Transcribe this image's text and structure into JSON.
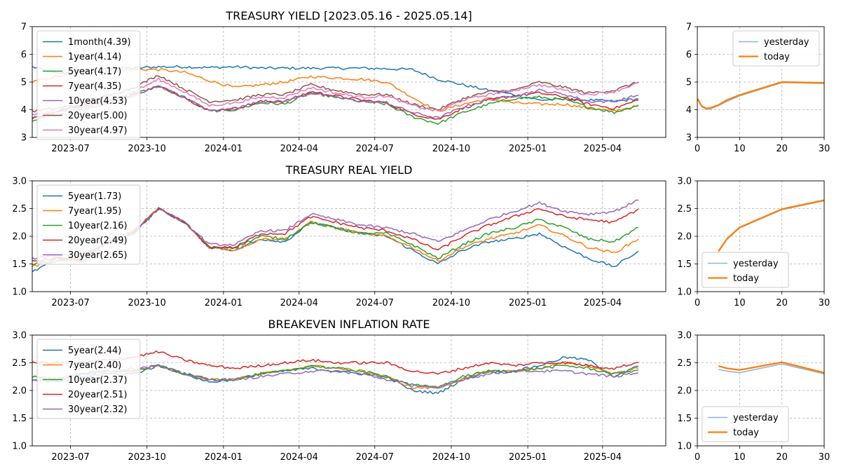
{
  "colors": {
    "c0": "#1f77b4",
    "c1": "#ff7f0e",
    "c2": "#2ca02c",
    "c3": "#d62728",
    "c4": "#9467bd",
    "c5": "#8c564b",
    "c6": "#e377c2",
    "yesterday": "#8fb8d8",
    "today": "#ff7f0e",
    "grid": "#b0b0b0"
  },
  "chart_data": [
    {
      "type": "line",
      "title": "TREASURY YIELD [2023.05.16 - 2025.05.14]",
      "x_ticks": [
        "2023-07",
        "2023-10",
        "2024-01",
        "2024-04",
        "2024-07",
        "2024-10",
        "2025-01",
        "2025-04"
      ],
      "ylim": [
        3,
        7
      ],
      "y_ticks": [
        "3",
        "4",
        "5",
        "6",
        "7"
      ],
      "grid": true,
      "legend_position": "upper-left",
      "x_dates": [
        "2023-05-16",
        "2023-06-15",
        "2023-07-15",
        "2023-08-15",
        "2023-09-15",
        "2023-10-15",
        "2023-11-15",
        "2023-12-15",
        "2024-01-15",
        "2024-02-15",
        "2024-03-15",
        "2024-04-15",
        "2024-05-15",
        "2024-06-15",
        "2024-07-15",
        "2024-08-15",
        "2024-09-15",
        "2024-10-15",
        "2024-11-15",
        "2024-12-15",
        "2025-01-15",
        "2025-02-15",
        "2025-03-15",
        "2025-04-15",
        "2025-05-14"
      ],
      "series": [
        {
          "name": "1month(4.39)",
          "color_key": "c0",
          "values": [
            5.55,
            5.3,
            5.4,
            5.5,
            5.5,
            5.55,
            5.55,
            5.52,
            5.55,
            5.5,
            5.5,
            5.5,
            5.5,
            5.5,
            5.48,
            5.45,
            5.1,
            4.9,
            4.7,
            4.55,
            4.35,
            4.37,
            4.35,
            4.3,
            4.39
          ]
        },
        {
          "name": "1year(4.14)",
          "color_key": "c1",
          "values": [
            5.0,
            5.2,
            5.35,
            5.4,
            5.45,
            5.45,
            5.35,
            5.05,
            4.8,
            4.9,
            5.0,
            5.2,
            5.15,
            5.1,
            5.0,
            4.45,
            3.95,
            4.2,
            4.4,
            4.25,
            4.2,
            4.2,
            4.05,
            3.95,
            4.14
          ]
        },
        {
          "name": "5year(4.17)",
          "color_key": "c2",
          "values": [
            3.55,
            3.95,
            4.15,
            4.3,
            4.6,
            4.85,
            4.45,
            3.95,
            4.0,
            4.25,
            4.2,
            4.6,
            4.45,
            4.3,
            4.2,
            3.75,
            3.5,
            3.9,
            4.2,
            4.4,
            4.45,
            4.35,
            4.1,
            3.9,
            4.17
          ]
        },
        {
          "name": "7year(4.35)",
          "color_key": "c3",
          "values": [
            3.7,
            3.95,
            4.15,
            4.3,
            4.55,
            4.85,
            4.45,
            3.95,
            4.05,
            4.3,
            4.3,
            4.65,
            4.5,
            4.35,
            4.25,
            3.85,
            3.65,
            4.05,
            4.35,
            4.5,
            4.6,
            4.45,
            4.2,
            4.05,
            4.35
          ]
        },
        {
          "name": "10year(4.53)",
          "color_key": "c4",
          "values": [
            3.7,
            3.8,
            4.0,
            4.2,
            4.5,
            4.85,
            4.45,
            3.95,
            4.05,
            4.3,
            4.3,
            4.6,
            4.45,
            4.3,
            4.25,
            3.9,
            3.7,
            4.1,
            4.35,
            4.5,
            4.7,
            4.55,
            4.3,
            4.3,
            4.53
          ]
        },
        {
          "name": "20year(5.00)",
          "color_key": "c5",
          "values": [
            3.95,
            4.05,
            4.2,
            4.5,
            4.8,
            5.25,
            4.75,
            4.3,
            4.35,
            4.55,
            4.55,
            4.9,
            4.7,
            4.55,
            4.55,
            4.2,
            4.0,
            4.4,
            4.65,
            4.7,
            5.0,
            4.8,
            4.6,
            4.7,
            5.0
          ]
        },
        {
          "name": "30year(4.97)",
          "color_key": "c6",
          "values": [
            3.85,
            3.9,
            4.05,
            4.3,
            4.65,
            5.1,
            4.65,
            4.15,
            4.25,
            4.45,
            4.45,
            4.8,
            4.6,
            4.45,
            4.5,
            4.15,
            3.95,
            4.35,
            4.55,
            4.7,
            4.9,
            4.7,
            4.55,
            4.65,
            4.97
          ]
        }
      ]
    },
    {
      "type": "line",
      "title": "",
      "xlim": [
        0,
        30
      ],
      "x_ticks": [
        "0",
        "10",
        "20",
        "30"
      ],
      "ylim": [
        3,
        7
      ],
      "y_ticks": [
        "3",
        "4",
        "5",
        "6",
        "7"
      ],
      "grid": true,
      "legend_position": "upper-right",
      "x": [
        0.083,
        1,
        2,
        3,
        5,
        7,
        10,
        20,
        30
      ],
      "series": [
        {
          "name": "yesterday",
          "color_key": "yesterday",
          "values": [
            4.38,
            4.12,
            4.02,
            4.02,
            4.15,
            4.3,
            4.5,
            4.98,
            4.95
          ]
        },
        {
          "name": "today",
          "color_key": "today",
          "values": [
            4.39,
            4.14,
            4.05,
            4.06,
            4.17,
            4.35,
            4.53,
            5.0,
            4.97
          ]
        }
      ]
    },
    {
      "type": "line",
      "title": "TREASURY REAL YIELD",
      "x_ticks": [
        "2023-07",
        "2023-10",
        "2024-01",
        "2024-04",
        "2024-07",
        "2024-10",
        "2025-01",
        "2025-04"
      ],
      "ylim": [
        1.0,
        3.0
      ],
      "y_ticks": [
        "1.0",
        "1.5",
        "2.0",
        "2.5",
        "3.0"
      ],
      "grid": true,
      "legend_position": "upper-left",
      "x_dates": [
        "2023-05-16",
        "2023-06-15",
        "2023-07-15",
        "2023-08-15",
        "2023-09-15",
        "2023-10-15",
        "2023-11-15",
        "2023-12-15",
        "2024-01-15",
        "2024-02-15",
        "2024-03-15",
        "2024-04-15",
        "2024-05-15",
        "2024-06-15",
        "2024-07-15",
        "2024-08-15",
        "2024-09-15",
        "2024-10-15",
        "2024-11-15",
        "2024-12-15",
        "2025-01-15",
        "2025-02-15",
        "2025-03-15",
        "2025-04-15",
        "2025-05-14"
      ],
      "series": [
        {
          "name": "5year(1.73)",
          "color_key": "c0",
          "values": [
            1.35,
            1.6,
            1.55,
            1.9,
            2.1,
            2.5,
            2.25,
            1.8,
            1.75,
            1.95,
            1.9,
            2.25,
            2.15,
            2.05,
            2.0,
            1.75,
            1.5,
            1.75,
            1.9,
            1.95,
            2.05,
            1.8,
            1.6,
            1.45,
            1.73
          ]
        },
        {
          "name": "7year(1.95)",
          "color_key": "c1",
          "values": [
            1.45,
            1.6,
            1.55,
            1.9,
            2.1,
            2.5,
            2.25,
            1.8,
            1.75,
            1.95,
            1.95,
            2.25,
            2.15,
            2.05,
            2.0,
            1.8,
            1.55,
            1.8,
            1.95,
            2.05,
            2.2,
            2.0,
            1.8,
            1.7,
            1.95
          ]
        },
        {
          "name": "10year(2.16)",
          "color_key": "c2",
          "values": [
            1.5,
            1.55,
            1.6,
            1.9,
            2.05,
            2.5,
            2.25,
            1.8,
            1.8,
            2.0,
            1.95,
            2.25,
            2.15,
            2.05,
            2.05,
            1.85,
            1.6,
            1.85,
            2.05,
            2.15,
            2.3,
            2.15,
            1.95,
            1.9,
            2.16
          ]
        },
        {
          "name": "20year(2.49)",
          "color_key": "c3",
          "values": [
            1.55,
            1.6,
            1.6,
            1.9,
            2.05,
            2.5,
            2.25,
            1.8,
            1.8,
            2.05,
            2.05,
            2.35,
            2.25,
            2.15,
            2.1,
            1.95,
            1.75,
            2.0,
            2.2,
            2.35,
            2.5,
            2.35,
            2.3,
            2.25,
            2.49
          ]
        },
        {
          "name": "30year(2.65)",
          "color_key": "c4",
          "values": [
            1.6,
            1.65,
            1.65,
            1.9,
            2.05,
            2.5,
            2.25,
            1.85,
            1.85,
            2.1,
            2.1,
            2.4,
            2.3,
            2.2,
            2.15,
            2.05,
            1.9,
            2.1,
            2.3,
            2.45,
            2.6,
            2.45,
            2.4,
            2.45,
            2.65
          ]
        }
      ]
    },
    {
      "type": "line",
      "title": "",
      "xlim": [
        0,
        30
      ],
      "x_ticks": [
        "0",
        "10",
        "20",
        "30"
      ],
      "ylim": [
        1.0,
        3.0
      ],
      "y_ticks": [
        "1.0",
        "1.5",
        "2.0",
        "2.5",
        "3.0"
      ],
      "grid": true,
      "legend_position": "lower-left",
      "x": [
        5,
        7,
        10,
        20,
        30
      ],
      "series": [
        {
          "name": "yesterday",
          "color_key": "yesterday",
          "values": [
            1.72,
            1.94,
            2.15,
            2.48,
            2.64
          ]
        },
        {
          "name": "today",
          "color_key": "today",
          "values": [
            1.73,
            1.95,
            2.16,
            2.49,
            2.65
          ]
        }
      ]
    },
    {
      "type": "line",
      "title": "BREAKEVEN INFLATION RATE",
      "x_ticks": [
        "2023-07",
        "2023-10",
        "2024-01",
        "2024-04",
        "2024-07",
        "2024-10",
        "2025-01",
        "2025-04"
      ],
      "ylim": [
        1.0,
        3.0
      ],
      "y_ticks": [
        "1.0",
        "1.5",
        "2.0",
        "2.5",
        "3.0"
      ],
      "grid": true,
      "legend_position": "upper-left",
      "x_dates": [
        "2023-05-16",
        "2023-06-15",
        "2023-07-15",
        "2023-08-15",
        "2023-09-15",
        "2023-10-15",
        "2023-11-15",
        "2023-12-15",
        "2024-01-15",
        "2024-02-15",
        "2024-03-15",
        "2024-04-15",
        "2024-05-15",
        "2024-06-15",
        "2024-07-15",
        "2024-08-15",
        "2024-09-15",
        "2024-10-15",
        "2024-11-15",
        "2024-12-15",
        "2025-01-15",
        "2025-02-15",
        "2025-03-15",
        "2025-04-15",
        "2025-05-14"
      ],
      "series": [
        {
          "name": "5year(2.44)",
          "color_key": "c0",
          "values": [
            2.2,
            2.15,
            2.25,
            2.3,
            2.3,
            2.45,
            2.3,
            2.15,
            2.2,
            2.3,
            2.35,
            2.4,
            2.35,
            2.3,
            2.25,
            2.0,
            1.95,
            2.2,
            2.35,
            2.35,
            2.45,
            2.6,
            2.55,
            2.25,
            2.44
          ]
        },
        {
          "name": "7year(2.40)",
          "color_key": "c1",
          "values": [
            2.25,
            2.2,
            2.3,
            2.35,
            2.35,
            2.45,
            2.3,
            2.2,
            2.2,
            2.3,
            2.35,
            2.45,
            2.4,
            2.35,
            2.25,
            2.05,
            2.05,
            2.2,
            2.35,
            2.35,
            2.4,
            2.5,
            2.45,
            2.3,
            2.4
          ]
        },
        {
          "name": "10year(2.37)",
          "color_key": "c2",
          "values": [
            2.25,
            2.2,
            2.3,
            2.35,
            2.35,
            2.45,
            2.3,
            2.2,
            2.2,
            2.3,
            2.35,
            2.45,
            2.4,
            2.35,
            2.25,
            2.1,
            2.05,
            2.25,
            2.35,
            2.35,
            2.4,
            2.45,
            2.4,
            2.3,
            2.37
          ]
        },
        {
          "name": "20year(2.51)",
          "color_key": "c3",
          "values": [
            2.5,
            2.5,
            2.5,
            2.55,
            2.6,
            2.7,
            2.55,
            2.45,
            2.4,
            2.45,
            2.5,
            2.55,
            2.5,
            2.5,
            2.5,
            2.35,
            2.3,
            2.4,
            2.5,
            2.45,
            2.5,
            2.5,
            2.45,
            2.4,
            2.51
          ]
        },
        {
          "name": "30year(2.32)",
          "color_key": "c4",
          "values": [
            2.2,
            2.2,
            2.3,
            2.35,
            2.4,
            2.45,
            2.3,
            2.2,
            2.2,
            2.25,
            2.3,
            2.35,
            2.35,
            2.3,
            2.2,
            2.1,
            2.05,
            2.2,
            2.3,
            2.35,
            2.35,
            2.35,
            2.3,
            2.25,
            2.32
          ]
        }
      ]
    },
    {
      "type": "line",
      "title": "",
      "xlim": [
        0,
        30
      ],
      "x_ticks": [
        "0",
        "10",
        "20",
        "30"
      ],
      "ylim": [
        1.0,
        3.0
      ],
      "y_ticks": [
        "1.0",
        "1.5",
        "2.0",
        "2.5",
        "3.0"
      ],
      "grid": true,
      "legend_position": "lower-left",
      "x": [
        5,
        7,
        10,
        20,
        30
      ],
      "series": [
        {
          "name": "yesterday",
          "color_key": "yesterday",
          "values": [
            2.38,
            2.35,
            2.32,
            2.48,
            2.3
          ]
        },
        {
          "name": "today",
          "color_key": "today",
          "values": [
            2.44,
            2.4,
            2.37,
            2.51,
            2.32
          ]
        }
      ]
    }
  ]
}
